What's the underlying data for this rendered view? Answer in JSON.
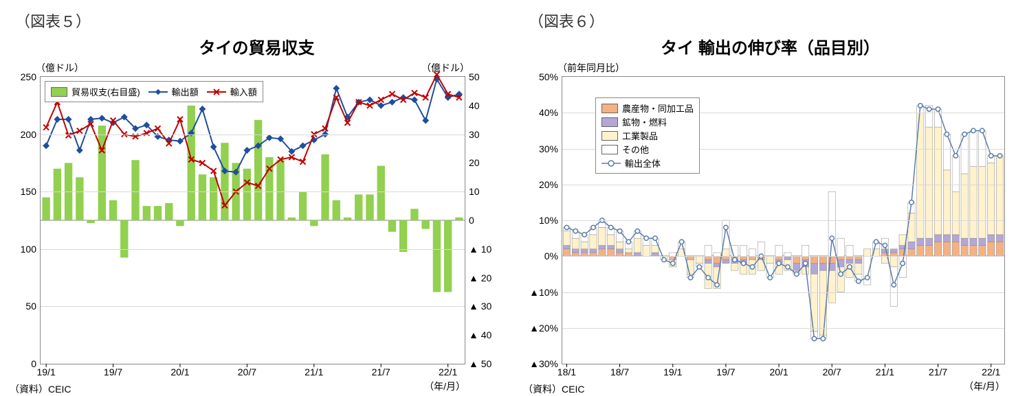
{
  "left": {
    "fig_label": "（図表５）",
    "title": "タイの貿易収支",
    "y_left_unit": "（億ドル）",
    "y_right_unit": "（億ドル）",
    "x_axis_label": "（年/月）",
    "source": "（資料）CEIC",
    "y_left": {
      "min": 0,
      "max": 250,
      "step": 50,
      "ticks": [
        0,
        50,
        100,
        150,
        200,
        250
      ]
    },
    "y_right": {
      "min": -50,
      "max": 50,
      "step": 10,
      "ticks": [
        50,
        40,
        30,
        20,
        10,
        0,
        -10,
        -20,
        -30,
        -40,
        -50
      ],
      "tick_labels": [
        "50",
        "40",
        "30",
        "20",
        "10",
        "0",
        "▲ 10",
        "▲ 20",
        "▲ 30",
        "▲ 40",
        "▲ 50"
      ]
    },
    "x_tick_labels": [
      "19/1",
      "19/7",
      "20/1",
      "20/7",
      "21/1",
      "21/7",
      "22/1"
    ],
    "x_tick_idx": [
      0,
      6,
      12,
      18,
      24,
      30,
      36
    ],
    "n": 38,
    "legend": [
      {
        "type": "bar",
        "color": "#92d050",
        "label": "貿易収支(右目盛)"
      },
      {
        "type": "line",
        "color": "#1f4e9c",
        "marker": "diamond",
        "label": "輸出額"
      },
      {
        "type": "line",
        "color": "#c00000",
        "marker": "x",
        "label": "輸入額"
      }
    ],
    "balance": [
      8,
      18,
      20,
      15,
      -1,
      33,
      7,
      -13,
      21,
      5,
      5,
      6,
      -2,
      40,
      16,
      15,
      27,
      20,
      18,
      35,
      22,
      21,
      1,
      10,
      -2,
      23,
      7,
      1,
      9,
      9,
      19,
      -4,
      -11,
      4,
      -3,
      -25,
      -25,
      1
    ],
    "exports": [
      190,
      213,
      213,
      186,
      213,
      214,
      210,
      215,
      205,
      208,
      198,
      195,
      194,
      201,
      222,
      189,
      168,
      167,
      186,
      190,
      197,
      196,
      185,
      190,
      195,
      200,
      240,
      215,
      228,
      230,
      225,
      228,
      232,
      230,
      212,
      248,
      232,
      235
    ],
    "imports": [
      206,
      228,
      199,
      203,
      209,
      186,
      212,
      200,
      198,
      201,
      205,
      192,
      213,
      178,
      175,
      168,
      138,
      150,
      158,
      155,
      170,
      178,
      180,
      176,
      200,
      205,
      232,
      210,
      228,
      225,
      230,
      235,
      230,
      236,
      232,
      252,
      235,
      232
    ],
    "colors": {
      "bar": "#92d050",
      "export_line": "#1f4e9c",
      "import_line": "#c00000",
      "grid": "#d9d9d9",
      "zero_line": "#808080"
    }
  },
  "right": {
    "fig_label": "（図表６）",
    "title": "タイ  輸出の伸び率（品目別）",
    "y_unit": "（前年同月比）",
    "x_axis_label": "（年/月）",
    "source": "（資料）CEIC",
    "y": {
      "min": -30,
      "max": 50,
      "step": 10,
      "ticks": [
        -30,
        -20,
        -10,
        0,
        10,
        20,
        30,
        40,
        50
      ],
      "tick_labels": [
        "▲30%",
        "▲20%",
        "▲10%",
        "0%",
        "10%",
        "20%",
        "30%",
        "40%",
        "50%"
      ]
    },
    "x_tick_labels": [
      "18/1",
      "18/7",
      "19/1",
      "19/7",
      "20/1",
      "20/7",
      "21/1",
      "21/7",
      "22/1"
    ],
    "x_tick_idx": [
      0,
      6,
      12,
      18,
      24,
      30,
      36,
      42,
      48
    ],
    "n": 50,
    "legend": [
      {
        "type": "bar",
        "color": "#f4b183",
        "label": "農産物・同加工品"
      },
      {
        "type": "bar",
        "color": "#b4a7d6",
        "label": "鉱物・燃料"
      },
      {
        "type": "bar",
        "color": "#fff2cc",
        "label": "工業製品"
      },
      {
        "type": "bar",
        "color": "#ffffff",
        "label": "その他"
      },
      {
        "type": "line",
        "color": "#5b7ca8",
        "marker": "circle",
        "label": "輸出全体"
      }
    ],
    "colors": {
      "agri": "#f4b183",
      "mineral": "#b4a7d6",
      "indust": "#fff2cc",
      "other": "#ffffff",
      "total_line": "#5b7ca8",
      "grid": "#d9d9d9",
      "axis": "#000000"
    },
    "agri": [
      2,
      1,
      1,
      1,
      2,
      2,
      1,
      1,
      0,
      0,
      0,
      0,
      -1,
      0,
      -1,
      0,
      -1,
      -2,
      -1,
      -1,
      -1,
      -1,
      -1,
      0,
      -1,
      0,
      -2,
      -1,
      -2,
      -2,
      -2,
      -1,
      -1,
      -1,
      0,
      0,
      1,
      1,
      2,
      2,
      3,
      3,
      4,
      4,
      4,
      3,
      3,
      3,
      4,
      4
    ],
    "mineral": [
      1,
      1,
      1,
      1,
      1,
      1,
      1,
      0,
      1,
      0,
      1,
      0,
      0,
      0,
      0,
      0,
      -1,
      -1,
      -1,
      -1,
      -1,
      0,
      0,
      0,
      -1,
      -1,
      -2,
      -2,
      -3,
      -2,
      -2,
      -2,
      -1,
      -1,
      0,
      0,
      1,
      1,
      1,
      2,
      2,
      2,
      2,
      2,
      2,
      2,
      2,
      2,
      2,
      2
    ],
    "indust": [
      4,
      3,
      2,
      4,
      5,
      3,
      2,
      1,
      4,
      3,
      2,
      0,
      -2,
      2,
      -4,
      -2,
      -7,
      -6,
      2,
      -2,
      -3,
      -4,
      -3,
      -2,
      -3,
      -3,
      -1,
      -2,
      -16,
      -18,
      -9,
      -7,
      -4,
      -3,
      2,
      2,
      -2,
      -3,
      3,
      8,
      35,
      31,
      30,
      18,
      12,
      18,
      20,
      20,
      20,
      22
    ],
    "other": [
      1,
      2,
      2,
      2,
      2,
      2,
      3,
      2,
      2,
      2,
      2,
      -1,
      1,
      2,
      -1,
      -1,
      3,
      1,
      8,
      3,
      3,
      2,
      4,
      -4,
      3,
      1,
      0,
      3,
      -2,
      -1,
      18,
      5,
      3,
      -2,
      -8,
      2,
      3,
      -11,
      -6,
      3,
      2,
      6,
      5,
      10,
      10,
      11,
      10,
      10,
      2,
      0
    ],
    "total": [
      8,
      7,
      6,
      8,
      10,
      8,
      7,
      4,
      7,
      5,
      5,
      -1,
      -2,
      4,
      -6,
      -3,
      -6,
      -8,
      8,
      -1,
      -2,
      -3,
      0,
      -6,
      -2,
      -3,
      -5,
      -2,
      -23,
      -23,
      5,
      -5,
      -3,
      -7,
      -6,
      4,
      3,
      -8,
      -2,
      15,
      42,
      41,
      41,
      34,
      28,
      34,
      35,
      35,
      28,
      28
    ]
  }
}
